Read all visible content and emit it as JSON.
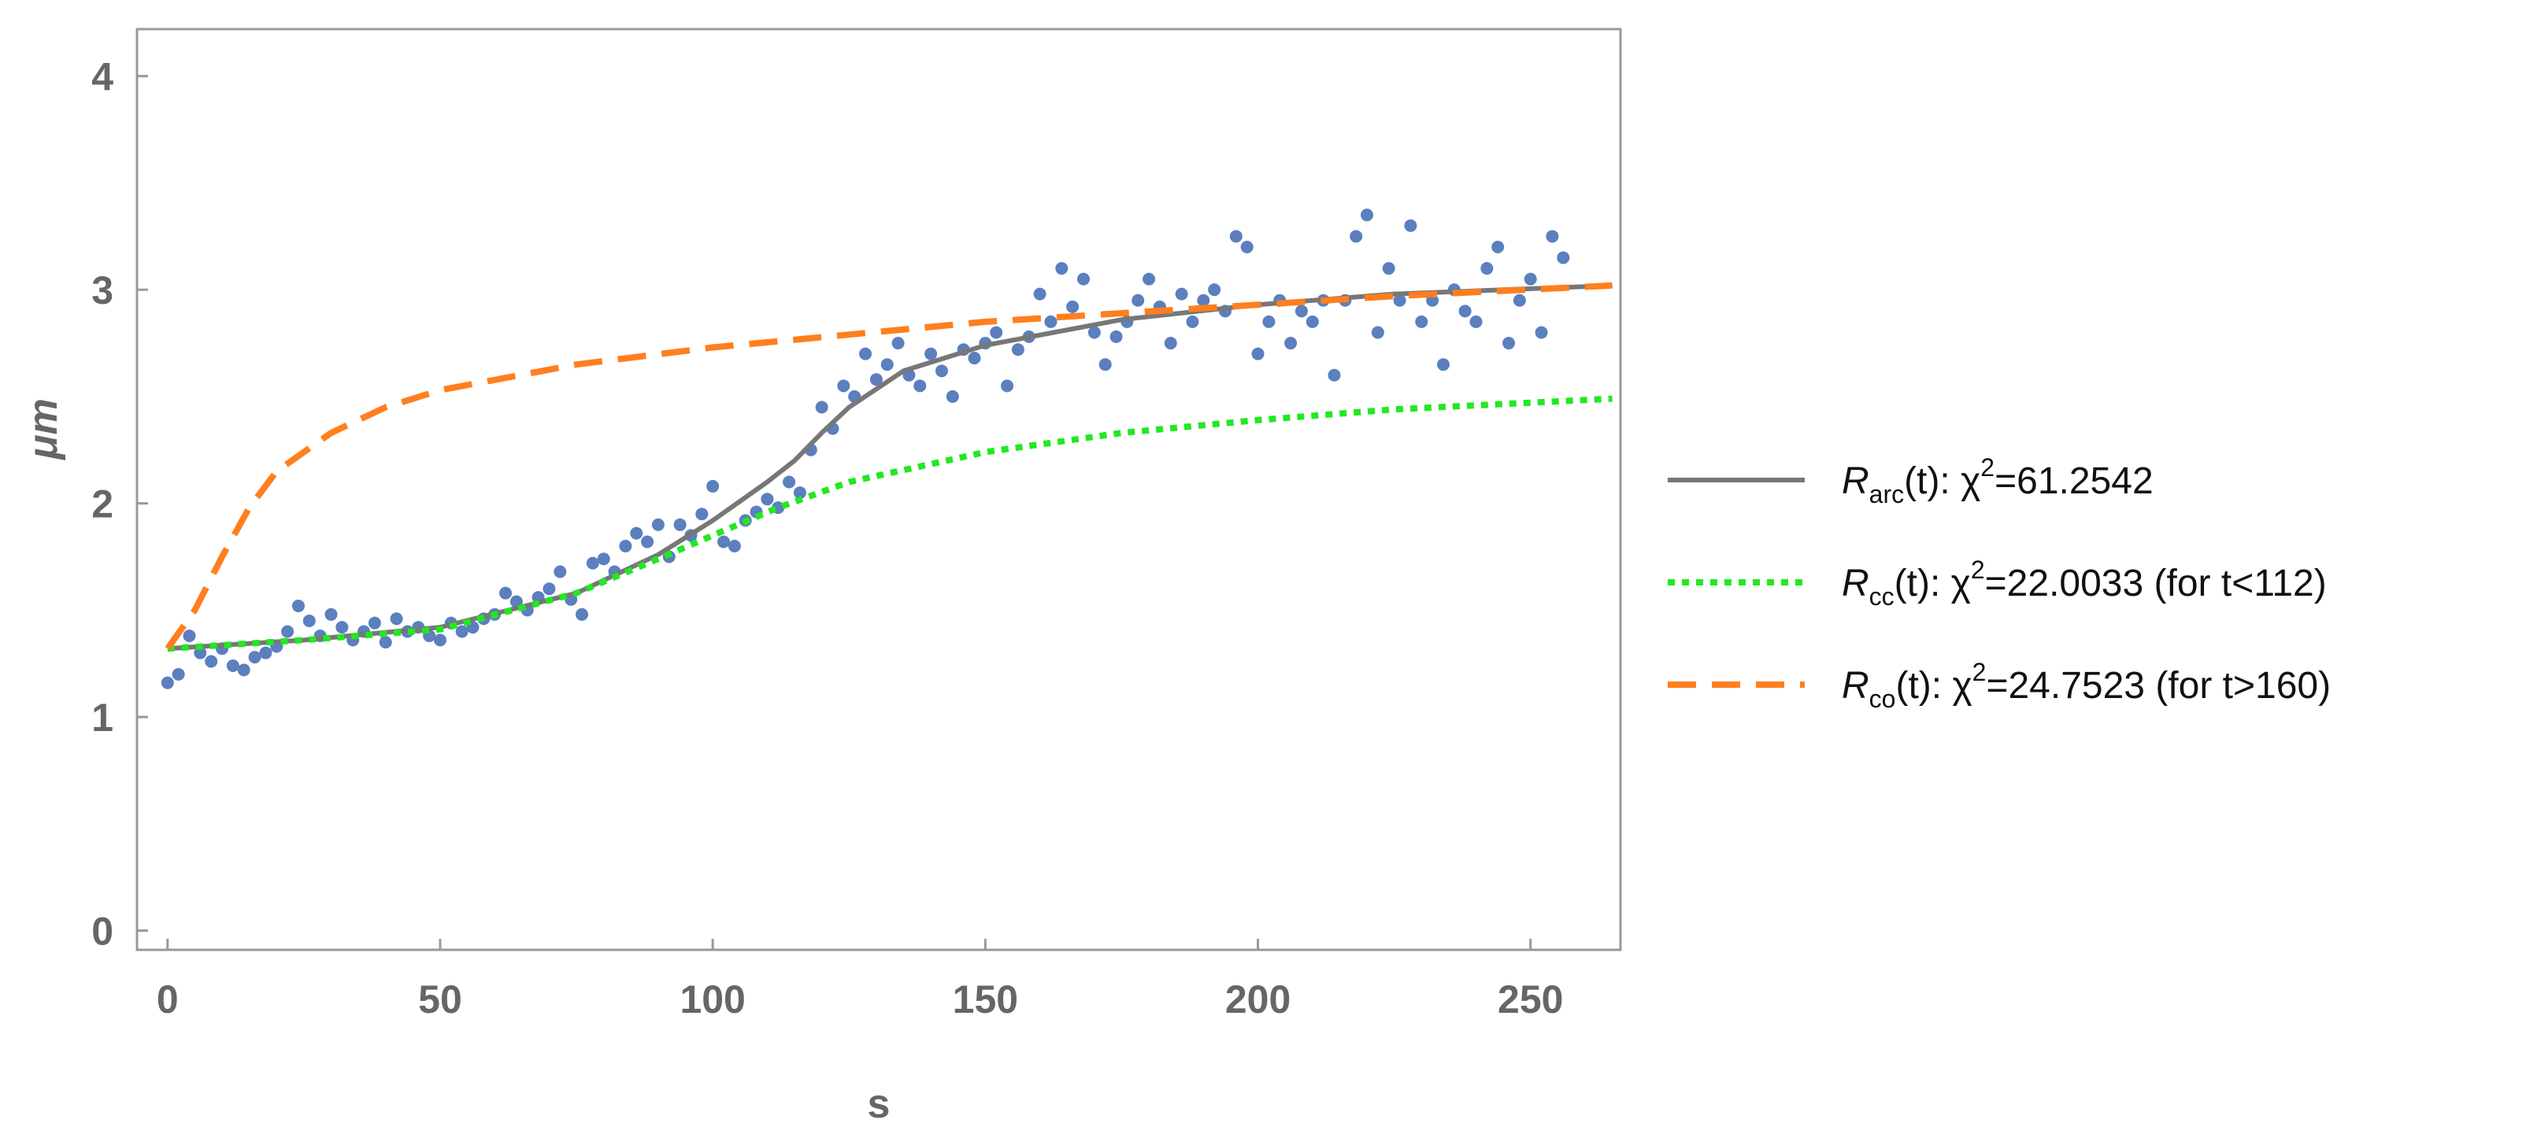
{
  "chart_data": {
    "type": "scatter",
    "xlabel": "s",
    "ylabel": "μm",
    "xlim": [
      -5.6,
      266.5
    ],
    "ylim": [
      -0.09,
      4.22
    ],
    "xticks": [
      0,
      50,
      100,
      150,
      200,
      250
    ],
    "yticks": [
      0,
      1,
      2,
      3,
      4
    ],
    "series": [
      {
        "type": "scatter",
        "color": "#5b7fbf",
        "x": [
          0,
          2,
          4,
          6,
          8,
          10,
          12,
          14,
          16,
          18,
          20,
          22,
          24,
          26,
          28,
          30,
          32,
          34,
          36,
          38,
          40,
          42,
          44,
          46,
          48,
          50,
          52,
          54,
          56,
          58,
          60,
          62,
          64,
          66,
          68,
          70,
          72,
          74,
          76,
          78,
          80,
          82,
          84,
          86,
          88,
          90,
          92,
          94,
          96,
          98,
          100,
          102,
          104,
          106,
          108,
          110,
          112,
          114,
          116,
          118,
          120,
          122,
          124,
          126,
          128,
          130,
          132,
          134,
          136,
          138,
          140,
          142,
          144,
          146,
          148,
          150,
          152,
          154,
          156,
          158,
          160,
          162,
          164,
          166,
          168,
          170,
          172,
          174,
          176,
          178,
          180,
          182,
          184,
          186,
          188,
          190,
          192,
          194,
          196,
          198,
          200,
          202,
          204,
          206,
          208,
          210,
          212,
          214,
          216,
          218,
          220,
          222,
          224,
          226,
          228,
          230,
          232,
          234,
          236,
          238,
          240,
          242,
          244,
          246,
          248,
          250,
          252,
          254,
          256
        ],
        "values": [
          1.16,
          1.2,
          1.38,
          1.3,
          1.26,
          1.32,
          1.24,
          1.22,
          1.28,
          1.3,
          1.33,
          1.4,
          1.52,
          1.45,
          1.38,
          1.48,
          1.42,
          1.36,
          1.4,
          1.44,
          1.35,
          1.46,
          1.4,
          1.42,
          1.38,
          1.36,
          1.44,
          1.4,
          1.42,
          1.46,
          1.48,
          1.58,
          1.54,
          1.5,
          1.56,
          1.6,
          1.68,
          1.55,
          1.48,
          1.72,
          1.74,
          1.68,
          1.8,
          1.86,
          1.82,
          1.9,
          1.75,
          1.9,
          1.85,
          1.95,
          2.08,
          1.82,
          1.8,
          1.92,
          1.96,
          2.02,
          1.98,
          2.1,
          2.05,
          2.25,
          2.45,
          2.35,
          2.55,
          2.5,
          2.7,
          2.58,
          2.65,
          2.75,
          2.6,
          2.55,
          2.7,
          2.62,
          2.5,
          2.72,
          2.68,
          2.75,
          2.8,
          2.55,
          2.72,
          2.78,
          2.98,
          2.85,
          3.1,
          2.92,
          3.05,
          2.8,
          2.65,
          2.78,
          2.85,
          2.95,
          3.05,
          2.92,
          2.75,
          2.98,
          2.85,
          2.95,
          3.0,
          2.9,
          3.25,
          3.2,
          2.7,
          2.85,
          2.95,
          2.75,
          2.9,
          2.85,
          2.95,
          2.6,
          2.95,
          3.25,
          3.35,
          2.8,
          3.1,
          2.95,
          3.3,
          2.85,
          2.95,
          2.65,
          3.0,
          2.9,
          2.85,
          3.1,
          3.2,
          2.75,
          2.95,
          3.05,
          2.8,
          3.25,
          3.15
        ]
      },
      {
        "type": "line",
        "style": "solid",
        "color": "#777777",
        "name": [
          "R",
          "arc",
          "(t): χ",
          "2",
          "=61.2542"
        ],
        "x": [
          0,
          25,
          50,
          75,
          90,
          100,
          110,
          115,
          120,
          125,
          135,
          150,
          175,
          200,
          225,
          265
        ],
        "values": [
          1.32,
          1.36,
          1.42,
          1.58,
          1.76,
          1.92,
          2.1,
          2.2,
          2.33,
          2.45,
          2.62,
          2.74,
          2.86,
          2.93,
          2.98,
          3.02
        ]
      },
      {
        "type": "line",
        "style": "dotted",
        "color": "#22e822",
        "name": [
          "R",
          "cc",
          "(t): χ",
          "2",
          "=22.0033 (for t<112)"
        ],
        "x": [
          0,
          25,
          50,
          75,
          90,
          100,
          112,
          125,
          150,
          175,
          200,
          225,
          265
        ],
        "values": [
          1.32,
          1.36,
          1.41,
          1.58,
          1.74,
          1.85,
          1.98,
          2.1,
          2.24,
          2.33,
          2.39,
          2.44,
          2.49
        ]
      },
      {
        "type": "line",
        "style": "dashed",
        "color": "#ff7f1e",
        "name": [
          "R",
          "co",
          "(t): χ",
          "2",
          "=24.7523 (for t>160)"
        ],
        "x": [
          0,
          5,
          10,
          15,
          20,
          30,
          40,
          50,
          75,
          100,
          125,
          150,
          175,
          200,
          225,
          265
        ],
        "values": [
          1.32,
          1.5,
          1.75,
          1.98,
          2.15,
          2.33,
          2.45,
          2.53,
          2.65,
          2.73,
          2.79,
          2.85,
          2.89,
          2.93,
          2.97,
          3.02
        ]
      }
    ]
  }
}
